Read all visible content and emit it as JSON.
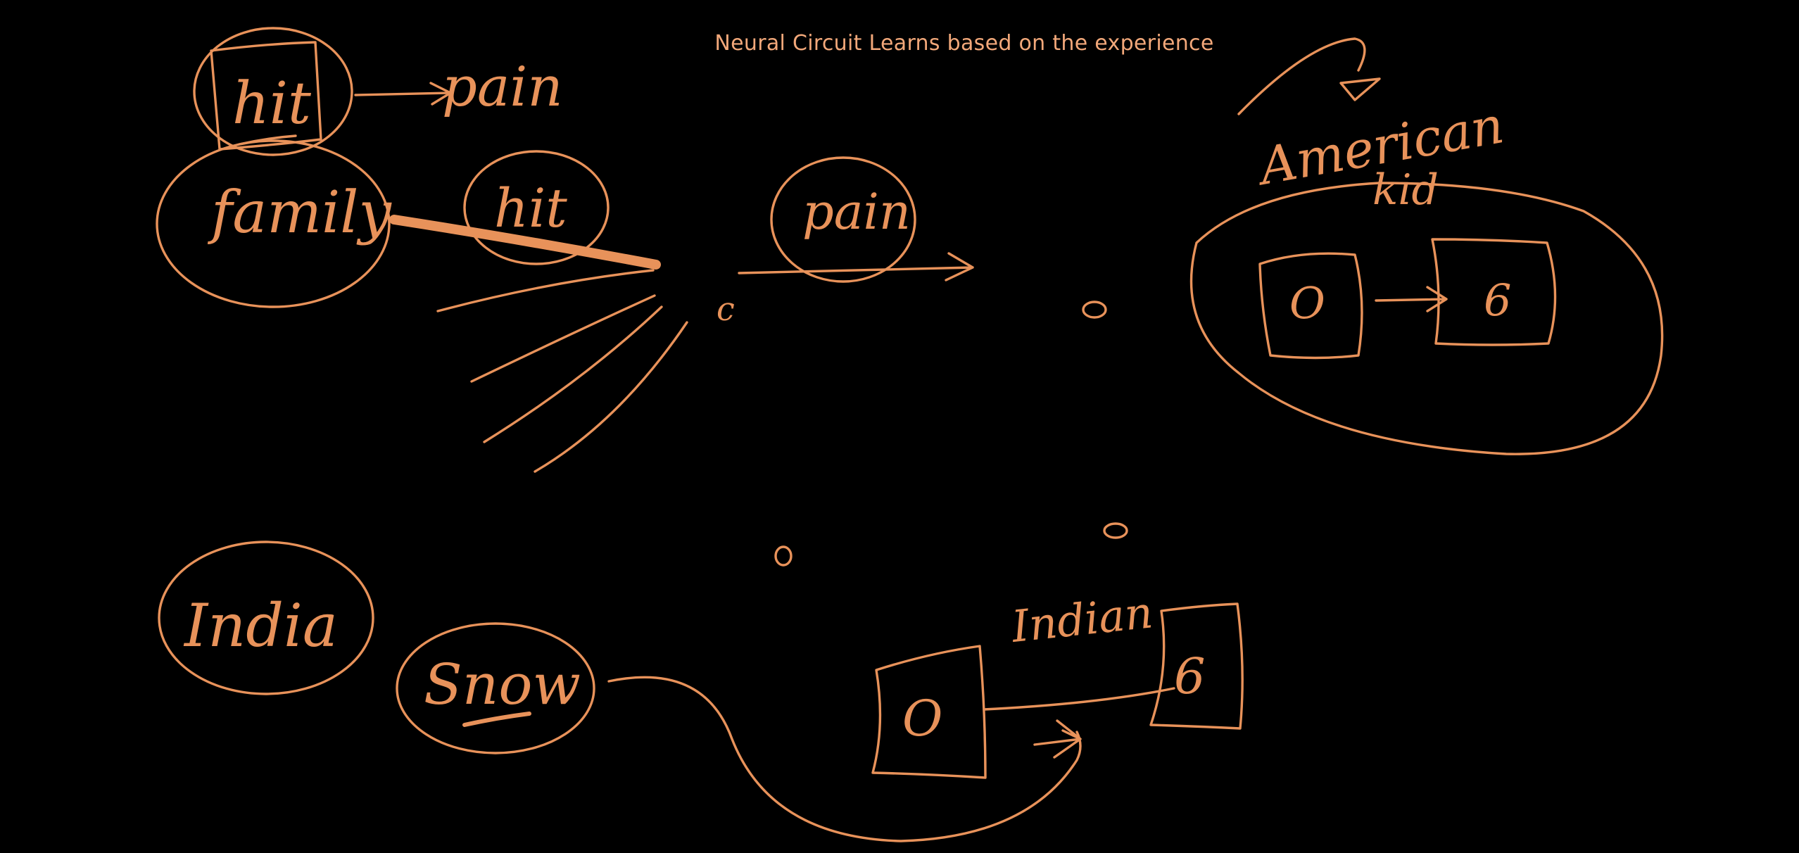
{
  "title": "Neural Circuit Learns based on the experience",
  "colors": {
    "background": "#000000",
    "ink": "#e8925a",
    "title_text": "#f2a87a"
  },
  "labels": {
    "hit_top": "hit",
    "pain_top": "pain",
    "family": "family",
    "hit_mid": "hit",
    "pain_mid": "pain",
    "neuron_c": "c",
    "american": "American",
    "kid": "kid",
    "box_o_right": "O",
    "box_6_right": "6",
    "india": "India",
    "snow": "Snow",
    "indian": "Indian",
    "box_o_bottom": "O",
    "box_6_bottom": "6"
  }
}
